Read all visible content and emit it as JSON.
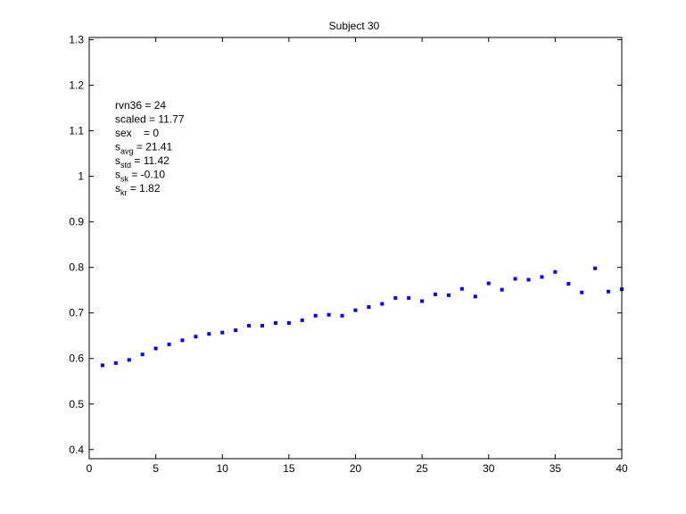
{
  "chart_data": {
    "type": "scatter",
    "title": "Subject 30",
    "xlabel": "",
    "ylabel": "",
    "xlim": [
      0,
      40
    ],
    "ylim": [
      0.38,
      1.305
    ],
    "x_ticks": [
      0,
      5,
      10,
      15,
      20,
      25,
      30,
      35,
      40
    ],
    "y_ticks": [
      0.4,
      0.5,
      0.6,
      0.7,
      0.8,
      0.9,
      1,
      1.1,
      1.2,
      1.3
    ],
    "grid": false,
    "marker_color": "#0000ff",
    "series": [
      {
        "x": [
          1,
          2,
          3,
          4,
          5,
          6,
          7,
          8,
          9,
          10,
          11,
          12,
          13,
          14,
          15,
          16,
          17,
          18,
          19,
          20,
          21,
          22,
          23,
          24,
          25,
          26,
          27,
          28,
          29,
          30,
          31,
          32,
          33,
          34,
          35,
          36,
          37,
          38,
          39,
          40
        ],
        "y": [
          0.585,
          0.59,
          0.597,
          0.609,
          0.622,
          0.631,
          0.64,
          0.648,
          0.654,
          0.657,
          0.662,
          0.672,
          0.672,
          0.678,
          0.678,
          0.684,
          0.694,
          0.696,
          0.694,
          0.706,
          0.713,
          0.72,
          0.733,
          0.733,
          0.726,
          0.741,
          0.739,
          0.753,
          0.736,
          0.765,
          0.751,
          0.775,
          0.773,
          0.779,
          0.79,
          0.764,
          0.745,
          0.798,
          0.747,
          0.752
        ]
      }
    ],
    "annotations": [
      {
        "label": "rvn36",
        "sub": "",
        "value": "= 24"
      },
      {
        "label": "scaled",
        "sub": "",
        "value": "= 11.77"
      },
      {
        "label": "sex",
        "sub": "",
        "value": "   = 0"
      },
      {
        "label": "s",
        "sub": "avg",
        "value": " = 21.41"
      },
      {
        "label": "s",
        "sub": "std",
        "value": " = 11.42"
      },
      {
        "label": "s",
        "sub": "sk",
        "value": " = -0.10"
      },
      {
        "label": "s",
        "sub": "kr",
        "value": " = 1.82"
      }
    ]
  }
}
